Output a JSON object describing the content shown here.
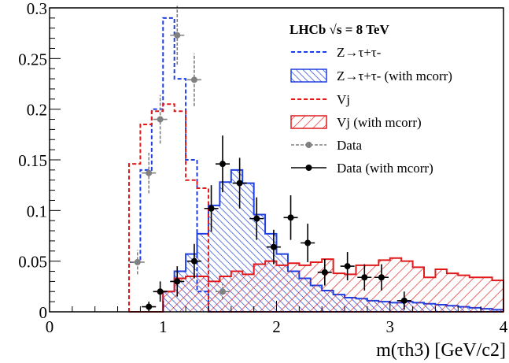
{
  "chart_data": {
    "type": "histogram",
    "xlabel": "m(τh3) [GeV/c2]",
    "ylabel": "",
    "xlim": [
      0,
      4
    ],
    "ylim": [
      0,
      0.3
    ],
    "x_ticks": [
      "0",
      "1",
      "2",
      "3",
      "4"
    ],
    "y_ticks": [
      "0",
      "0.05",
      "0.1",
      "0.15",
      "0.2",
      "0.25",
      "0.3"
    ],
    "legend_title": "LHCb √s = 8 TeV",
    "legend_position": "top-right",
    "bin_edges": [
      0.7,
      0.8,
      0.9,
      1.0,
      1.1,
      1.2,
      1.3,
      1.4,
      1.5,
      1.6,
      1.7,
      1.8,
      1.9,
      2.0,
      2.1,
      2.2,
      2.3,
      2.4,
      2.5,
      2.6,
      2.7,
      2.8,
      2.9,
      3.0,
      3.1,
      3.2,
      3.3,
      3.4,
      3.5,
      3.6,
      3.7,
      3.8,
      3.9,
      4.0
    ],
    "series": [
      {
        "name": "Z→τ+τ-",
        "kind": "dashed-histogram",
        "color": "#1f3fe0",
        "values": [
          0.049,
          0.14,
          0.2,
          0.29,
          0.23,
          0.15,
          0.02,
          0.0,
          0.0,
          0.0,
          0.0,
          0.0,
          0.0,
          0.0,
          0.0,
          0.0,
          0.0,
          0.0,
          0.0,
          0.0,
          0.0,
          0.0,
          0.0,
          0.0,
          0.0,
          0.0,
          0.0,
          0.0,
          0.0,
          0.0,
          0.0,
          0.0,
          0.0
        ]
      },
      {
        "name": "Z→τ+τ- (with mcorr)",
        "kind": "hatched-histogram",
        "color": "#1f3fe0",
        "values": [
          0.0,
          0.0,
          0.0,
          0.02,
          0.04,
          0.057,
          0.077,
          0.105,
          0.128,
          0.14,
          0.127,
          0.096,
          0.077,
          0.057,
          0.04,
          0.033,
          0.026,
          0.021,
          0.017,
          0.014,
          0.013,
          0.011,
          0.01,
          0.009,
          0.01,
          0.009,
          0.008,
          0.007,
          0.006,
          0.005,
          0.004,
          0.003,
          0.002
        ]
      },
      {
        "name": "Vj",
        "kind": "dashed-histogram",
        "color": "#e01a1a",
        "values": [
          0.146,
          0.185,
          0.198,
          0.205,
          0.198,
          0.13,
          0.122,
          0.0,
          0.0,
          0.0,
          0.0,
          0.0,
          0.0,
          0.0,
          0.0,
          0.0,
          0.0,
          0.0,
          0.0,
          0.0,
          0.0,
          0.0,
          0.0,
          0.0,
          0.0,
          0.0,
          0.0,
          0.0,
          0.0,
          0.0,
          0.0,
          0.0,
          0.0
        ]
      },
      {
        "name": "Vj (with mcorr)",
        "kind": "hatched-histogram",
        "color": "#e01a1a",
        "values": [
          0.0,
          0.0,
          0.0,
          0.02,
          0.033,
          0.035,
          0.035,
          0.03,
          0.035,
          0.04,
          0.037,
          0.047,
          0.05,
          0.046,
          0.048,
          0.046,
          0.049,
          0.052,
          0.038,
          0.037,
          0.046,
          0.046,
          0.051,
          0.053,
          0.05,
          0.044,
          0.034,
          0.042,
          0.038,
          0.036,
          0.034,
          0.034,
          0.031
        ]
      },
      {
        "name": "Data",
        "kind": "points",
        "color": "#808080",
        "x": [
          0.775,
          0.875,
          0.975,
          1.125,
          1.275,
          1.525
        ],
        "y": [
          0.049,
          0.137,
          0.19,
          0.273,
          0.229,
          0.02
        ],
        "err": [
          0.012,
          0.02,
          0.024,
          0.029,
          0.026,
          0.008
        ]
      },
      {
        "name": "Data (with mcorr)",
        "kind": "points",
        "color": "#000000",
        "x": [
          0.875,
          0.975,
          1.125,
          1.275,
          1.425,
          1.525,
          1.675,
          1.825,
          1.975,
          2.125,
          2.275,
          2.425,
          2.625,
          2.775,
          2.925,
          3.125
        ],
        "y": [
          0.005,
          0.02,
          0.03,
          0.05,
          0.102,
          0.146,
          0.127,
          0.092,
          0.064,
          0.093,
          0.068,
          0.039,
          0.045,
          0.034,
          0.034,
          0.011
        ],
        "err": [
          0.005,
          0.01,
          0.015,
          0.017,
          0.023,
          0.028,
          0.025,
          0.021,
          0.017,
          0.022,
          0.019,
          0.013,
          0.014,
          0.013,
          0.013,
          0.009
        ]
      }
    ],
    "legend": [
      {
        "label": "Z→τ+τ-",
        "style": "blue-dashed"
      },
      {
        "label": "Z→τ+τ- (with mcorr)",
        "style": "blue-hatched"
      },
      {
        "label": "Vj",
        "style": "red-dashed"
      },
      {
        "label": "Vj (with mcorr)",
        "style": "red-hatched"
      },
      {
        "label": "Data",
        "style": "grey-points"
      },
      {
        "label": "Data (with mcorr)",
        "style": "black-points"
      }
    ]
  }
}
